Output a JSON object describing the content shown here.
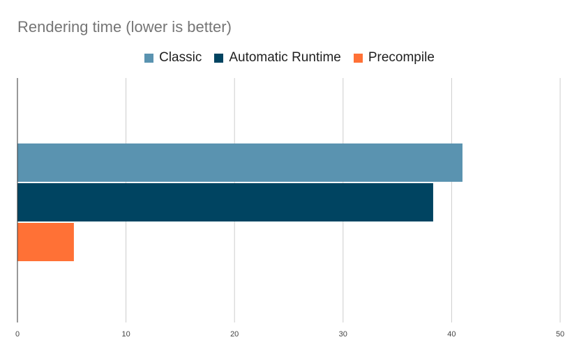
{
  "chart_data": {
    "type": "bar",
    "orientation": "horizontal",
    "title": "Rendering time (lower is better)",
    "xlabel": "",
    "ylabel": "",
    "xlim": [
      0,
      50
    ],
    "x_ticks": [
      "0",
      "10",
      "20",
      "30",
      "40",
      "50"
    ],
    "grid": "vertical",
    "legend_position": "top",
    "series": [
      {
        "name": "Classic",
        "values": [
          41.0
        ],
        "color": "#5a93b0"
      },
      {
        "name": "Automatic Runtime",
        "values": [
          38.3
        ],
        "color": "#004461"
      },
      {
        "name": "Precompile",
        "values": [
          5.2
        ],
        "color": "#ff7136"
      }
    ],
    "categories": [
      ""
    ]
  }
}
